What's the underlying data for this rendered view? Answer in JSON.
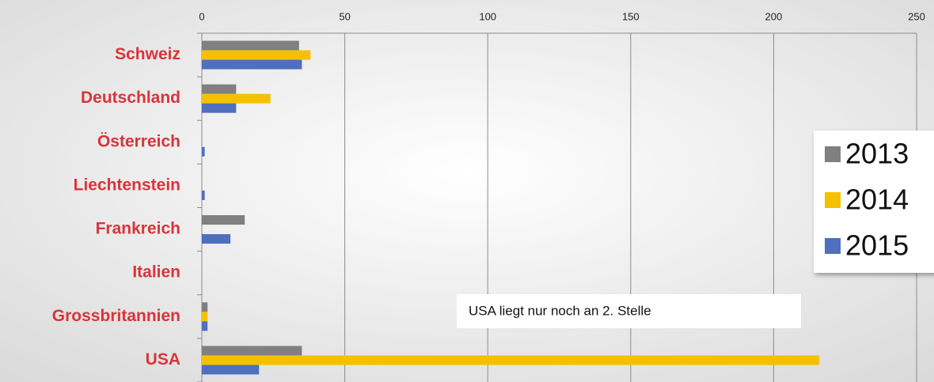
{
  "chart_data": {
    "type": "barh",
    "categories": [
      "Schweiz",
      "Deutschland",
      "Österreich",
      "Liechtenstein",
      "Frankreich",
      "Italien",
      "Grossbritannien",
      "USA"
    ],
    "series": [
      {
        "name": "2013",
        "color": "#808080",
        "values": [
          34,
          12,
          0,
          0,
          15,
          0,
          2,
          35
        ]
      },
      {
        "name": "2014",
        "color": "#f5c000",
        "values": [
          38,
          24,
          0,
          0,
          0,
          0,
          2,
          216
        ]
      },
      {
        "name": "2015",
        "color": "#4f6fbf",
        "values": [
          35,
          12,
          1,
          1,
          10,
          0,
          2,
          20
        ]
      }
    ],
    "xlim": [
      0,
      250
    ],
    "xticks": [
      0,
      50,
      100,
      150,
      200,
      250
    ],
    "grid": true,
    "legend": "right",
    "annotation": "USA liegt nur noch an 2. Stelle"
  }
}
